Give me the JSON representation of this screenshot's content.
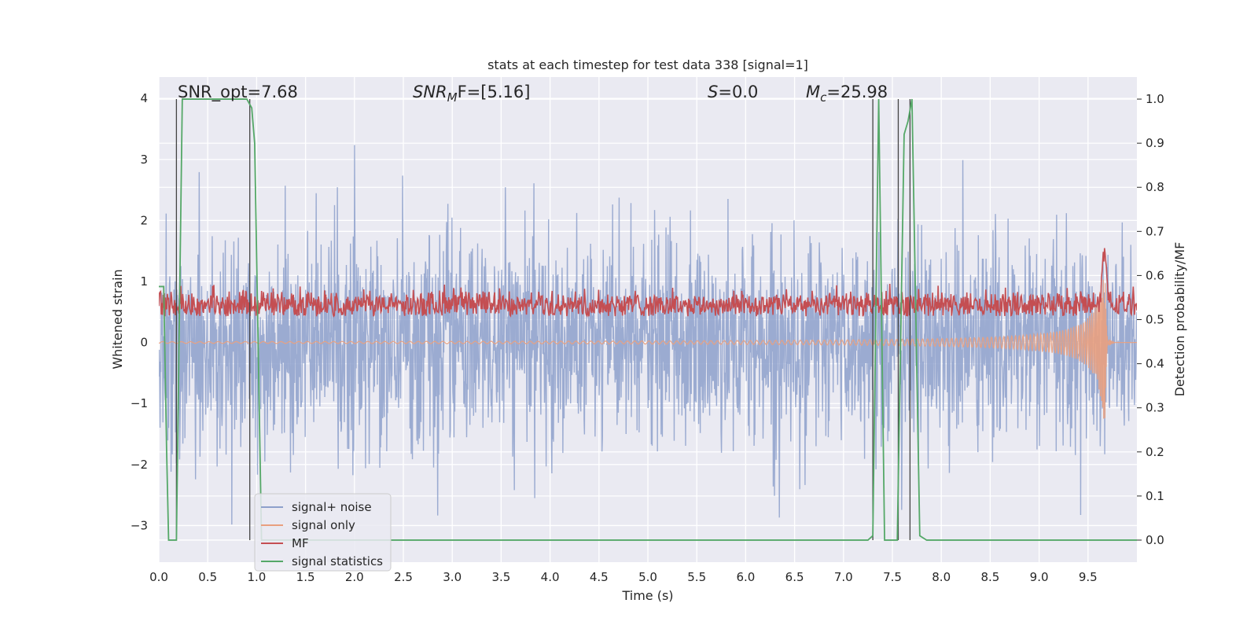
{
  "chart_data": {
    "type": "line",
    "title": "stats at each timestep for test data 338 [signal=1]",
    "xlabel": "Time (s)",
    "ylabel_left": "Whitened strain",
    "ylabel_right": "Detection probability/MF",
    "xlim": [
      0.0,
      10.0
    ],
    "ylim_left": [
      -3.6,
      4.35
    ],
    "ylim_right": [
      -0.05,
      1.05
    ],
    "x_ticks": [
      "0.0",
      "0.5",
      "1.0",
      "1.5",
      "2.0",
      "2.5",
      "3.0",
      "3.5",
      "4.0",
      "4.5",
      "5.0",
      "5.5",
      "6.0",
      "6.5",
      "7.0",
      "7.5",
      "8.0",
      "8.5",
      "9.0",
      "9.5"
    ],
    "y_ticks_left": [
      "−3",
      "−2",
      "−1",
      "0",
      "1",
      "2",
      "3",
      "4"
    ],
    "y_ticks_right": [
      "0.0",
      "0.1",
      "0.2",
      "0.3",
      "0.4",
      "0.5",
      "0.6",
      "0.7",
      "0.8",
      "0.9",
      "1.0"
    ],
    "grid": true,
    "legend_placement": "lower-left",
    "annotations": {
      "snr_opt": "SNR_opt=7.68",
      "snr_mf_var": "SNR",
      "snr_mf_sub": "M",
      "snr_mf_rest": "F=[5.16]",
      "s_var": "S",
      "s_rest": "=0.0",
      "mc_var": "M",
      "mc_sub": "c",
      "mc_rest": "=25.98"
    },
    "vertical_markers_x": [
      0.18,
      0.93,
      7.3,
      7.56,
      7.68
    ],
    "series": [
      {
        "name": "signal+ noise",
        "color": "#8da0cb",
        "axis": "left",
        "style": "noise",
        "amplitude_sd": 0.85
      },
      {
        "name": "signal only",
        "color": "#e9a07f",
        "axis": "left",
        "style": "chirp",
        "peak_time": 9.67,
        "peak_amplitude": 1.55
      },
      {
        "name": "MF",
        "color": "#c44e52",
        "axis": "right",
        "style": "mf",
        "baseline": 0.53,
        "peak_time": 9.67,
        "peak_value": 0.65
      },
      {
        "name": "signal statistics",
        "color": "#55a868",
        "axis": "right",
        "x": [
          0.0,
          0.05,
          0.08,
          0.1,
          0.12,
          0.18,
          0.24,
          0.4,
          0.6,
          0.85,
          0.9,
          0.95,
          0.98,
          1.05,
          1.3,
          3.0,
          5.0,
          7.0,
          7.25,
          7.3,
          7.36,
          7.42,
          7.55,
          7.62,
          7.66,
          7.7,
          7.78,
          7.85,
          8.5,
          9.5,
          10.0
        ],
        "values": [
          0.575,
          0.575,
          0.2,
          0.0,
          0.0,
          0.0,
          1.0,
          1.0,
          1.0,
          1.0,
          1.0,
          0.98,
          0.9,
          0.0,
          0.0,
          0.0,
          0.0,
          0.0,
          0.0,
          0.01,
          1.0,
          0.0,
          0.0,
          0.92,
          0.95,
          1.0,
          0.01,
          0.0,
          0.0,
          0.0,
          0.0
        ]
      }
    ]
  }
}
